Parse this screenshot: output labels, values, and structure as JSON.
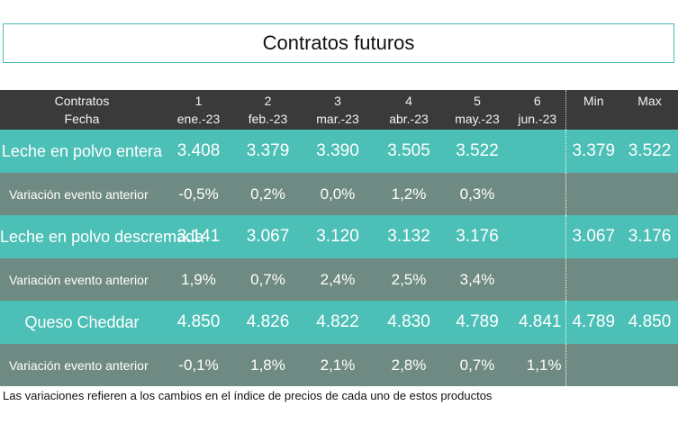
{
  "title": "Contratos futuros",
  "header": {
    "label_top": "Contratos",
    "label_bottom": "Fecha",
    "columns": [
      {
        "num": "1",
        "date": "ene.-23"
      },
      {
        "num": "2",
        "date": "feb.-23"
      },
      {
        "num": "3",
        "date": "mar.-23"
      },
      {
        "num": "4",
        "date": "abr.-23"
      },
      {
        "num": "5",
        "date": "may.-23"
      },
      {
        "num": "6",
        "date": "jun.-23"
      }
    ],
    "min_label": "Min",
    "max_label": "Max"
  },
  "rows": [
    {
      "type": "product",
      "name": "Leche en polvo entera",
      "values": [
        "3.408",
        "3.379",
        "3.390",
        "3.505",
        "3.522",
        ""
      ],
      "min": "3.379",
      "max": "3.522"
    },
    {
      "type": "variation",
      "name": "Variación evento anterior",
      "values": [
        "-0,5%",
        "0,2%",
        "0,0%",
        "1,2%",
        "0,3%",
        ""
      ],
      "min": "",
      "max": ""
    },
    {
      "type": "product",
      "name": "Leche en polvo descremada",
      "values": [
        "3.141",
        "3.067",
        "3.120",
        "3.132",
        "3.176",
        ""
      ],
      "min": "3.067",
      "max": "3.176"
    },
    {
      "type": "variation",
      "name": "Variación evento anterior",
      "values": [
        "1,9%",
        "0,7%",
        "2,4%",
        "2,5%",
        "3,4%",
        ""
      ],
      "min": "",
      "max": ""
    },
    {
      "type": "product",
      "name": "Queso Cheddar",
      "values": [
        "4.850",
        "4.826",
        "4.822",
        "4.830",
        "4.789",
        "4.841"
      ],
      "min": "4.789",
      "max": "4.850"
    },
    {
      "type": "variation",
      "name": "Variación evento anterior",
      "values": [
        "-0,1%",
        "1,8%",
        "2,1%",
        "2,8%",
        "0,7%",
        "1,1%"
      ],
      "min": "",
      "max": ""
    }
  ],
  "footnote": "Las variaciones refieren a los cambios en el índice de precios de cada uno de estos productos",
  "colors": {
    "header_bg": "#3a3a3a",
    "product_row_bg": "#4cbfb6",
    "variation_row_bg": "#6f8a83",
    "title_border": "#4bbcb4"
  }
}
